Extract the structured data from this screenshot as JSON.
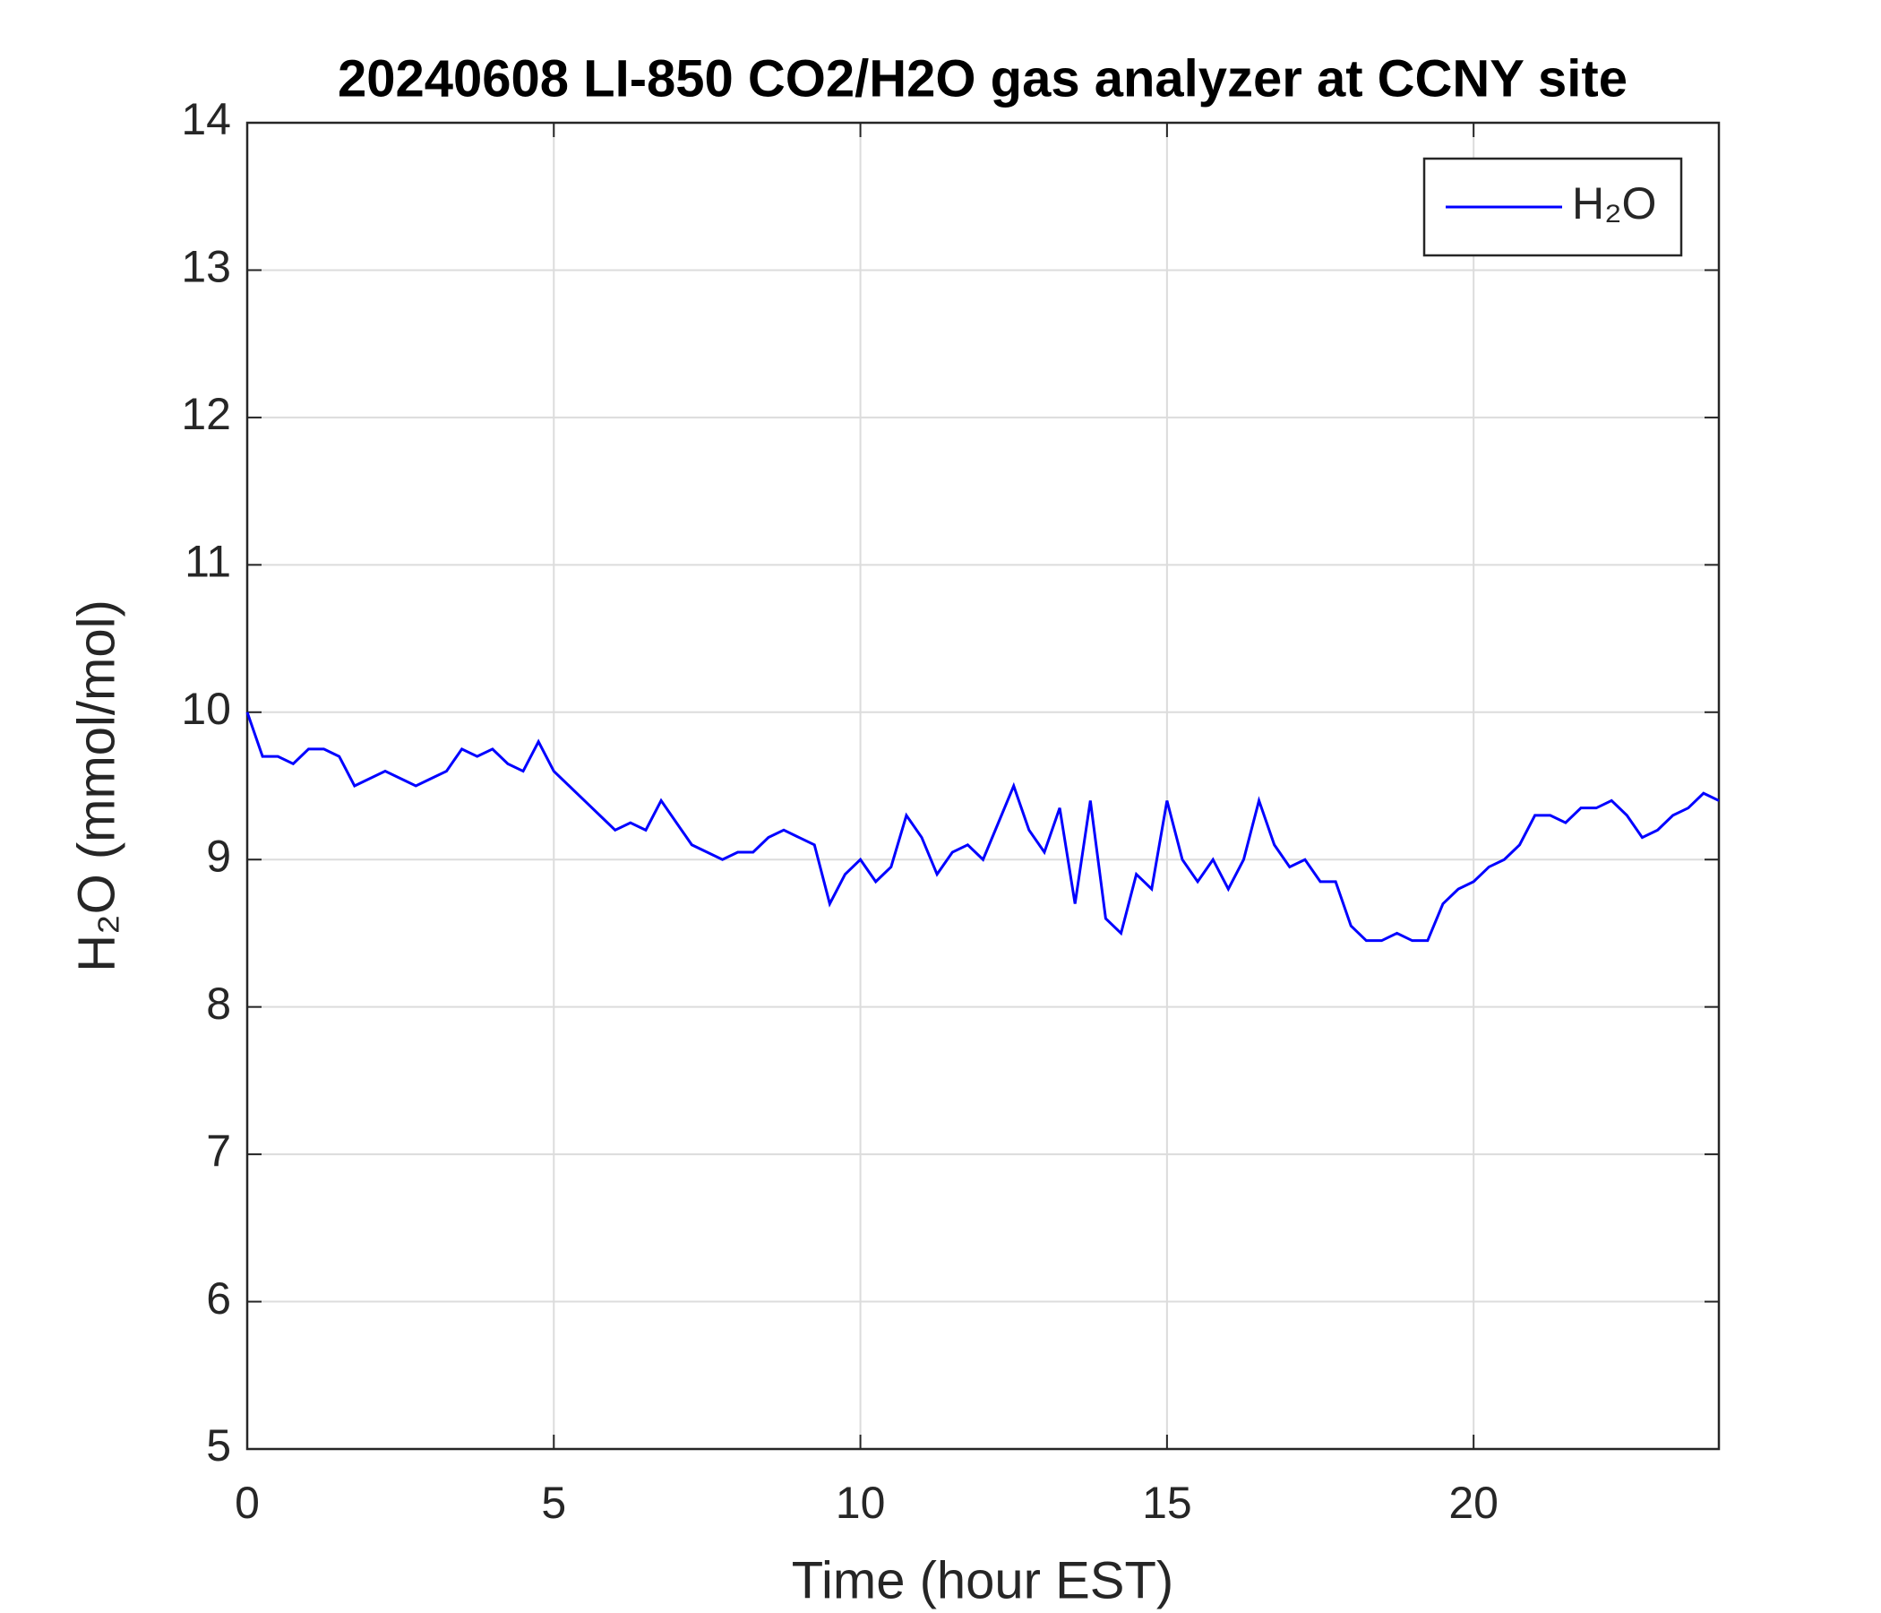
{
  "chart_data": {
    "type": "line",
    "title": "20240608 LI-850 CO2/H2O gas analyzer at CCNY site",
    "xlabel": "Time (hour EST)",
    "ylabel": "H₂O (mmol/mol)",
    "x": [
      0,
      0.25,
      0.5,
      0.75,
      1,
      1.25,
      1.5,
      1.75,
      2,
      2.25,
      2.5,
      2.75,
      3,
      3.25,
      3.5,
      3.75,
      4,
      4.25,
      4.5,
      4.75,
      5,
      5.25,
      5.5,
      5.75,
      6,
      6.25,
      6.5,
      6.75,
      7,
      7.25,
      7.5,
      7.75,
      8,
      8.25,
      8.5,
      8.75,
      9,
      9.25,
      9.5,
      9.75,
      10,
      10.25,
      10.5,
      10.75,
      11,
      11.25,
      11.5,
      11.75,
      12,
      12.25,
      12.5,
      12.75,
      13,
      13.25,
      13.5,
      13.75,
      14,
      14.25,
      14.5,
      14.75,
      15,
      15.25,
      15.5,
      15.75,
      16,
      16.25,
      16.5,
      16.75,
      17,
      17.25,
      17.5,
      17.75,
      18,
      18.25,
      18.5,
      18.75,
      19,
      19.25,
      19.5,
      19.75,
      20,
      20.25,
      20.5,
      20.75,
      21,
      21.25,
      21.5,
      21.75,
      22,
      22.25,
      22.5,
      22.75,
      23,
      23.25,
      23.5,
      23.75,
      24
    ],
    "series": [
      {
        "name": "H₂O",
        "color": "#0000ff",
        "values": [
          10.0,
          9.7,
          9.7,
          9.65,
          9.75,
          9.75,
          9.7,
          9.5,
          9.55,
          9.6,
          9.55,
          9.5,
          9.55,
          9.6,
          9.75,
          9.7,
          9.75,
          9.65,
          9.6,
          9.8,
          9.6,
          9.5,
          9.4,
          9.3,
          9.2,
          9.25,
          9.2,
          9.4,
          9.25,
          9.1,
          9.05,
          9.0,
          9.05,
          9.05,
          9.15,
          9.2,
          9.15,
          9.1,
          8.7,
          8.9,
          9.0,
          8.85,
          8.95,
          9.3,
          9.15,
          8.9,
          9.05,
          9.1,
          9.0,
          9.25,
          9.5,
          9.2,
          9.05,
          9.35,
          8.7,
          9.4,
          8.6,
          8.5,
          8.9,
          8.8,
          9.4,
          9.0,
          8.85,
          9.0,
          8.8,
          9.0,
          9.4,
          9.1,
          8.95,
          9.0,
          8.85,
          8.85,
          8.55,
          8.45,
          8.45,
          8.5,
          8.45,
          8.45,
          8.7,
          8.8,
          8.85,
          8.95,
          9.0,
          9.1,
          9.3,
          9.3,
          9.25,
          9.35,
          9.35,
          9.4,
          9.3,
          9.15,
          9.2,
          9.3,
          9.35,
          9.45,
          9.4
        ]
      }
    ],
    "xlim": [
      0,
      24
    ],
    "xticks": [
      0,
      5,
      10,
      15,
      20
    ],
    "ylim": [
      5,
      14
    ],
    "yticks": [
      5,
      6,
      7,
      8,
      9,
      10,
      11,
      12,
      13,
      14
    ],
    "grid": true,
    "legend": "upper right"
  }
}
